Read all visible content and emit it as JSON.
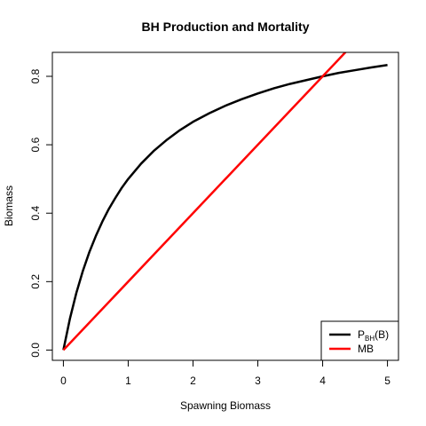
{
  "chart_data": {
    "type": "line",
    "title": "BH Production and Mortality",
    "xlabel": "Spawning Biomass",
    "ylabel": "Biomass",
    "xlim": [
      -0.17,
      5.17
    ],
    "ylim": [
      -0.03,
      0.87
    ],
    "x_ticks": [
      0,
      1,
      2,
      3,
      4,
      5
    ],
    "y_ticks": [
      0.0,
      0.2,
      0.4,
      0.6,
      0.8
    ],
    "x_tick_labels": [
      "0",
      "1",
      "2",
      "3",
      "4",
      "5"
    ],
    "y_tick_labels": [
      "0.0",
      "0.2",
      "0.4",
      "0.6",
      "0.8"
    ],
    "grid": false,
    "legend_position": "bottom-right",
    "series": [
      {
        "name": "P_BH(B)",
        "legend_main": "P",
        "legend_sub": "BH",
        "legend_rest": "(B)",
        "color": "#000000",
        "x": [
          0,
          0.1,
          0.2,
          0.3,
          0.4,
          0.5,
          0.6,
          0.7,
          0.8,
          0.9,
          1.0,
          1.2,
          1.4,
          1.6,
          1.8,
          2.0,
          2.25,
          2.5,
          2.75,
          3.0,
          3.25,
          3.5,
          3.75,
          4.0,
          4.25,
          4.5,
          4.75,
          5.0
        ],
        "y": [
          0,
          0.091,
          0.167,
          0.231,
          0.286,
          0.333,
          0.375,
          0.412,
          0.444,
          0.474,
          0.5,
          0.545,
          0.583,
          0.615,
          0.643,
          0.667,
          0.692,
          0.714,
          0.733,
          0.75,
          0.765,
          0.778,
          0.789,
          0.8,
          0.81,
          0.818,
          0.826,
          0.833
        ]
      },
      {
        "name": "MB",
        "legend_main": "MB",
        "legend_sub": "",
        "legend_rest": "",
        "color": "#ff0000",
        "x": [
          0,
          5.0
        ],
        "y": [
          0,
          1.0
        ]
      }
    ]
  }
}
